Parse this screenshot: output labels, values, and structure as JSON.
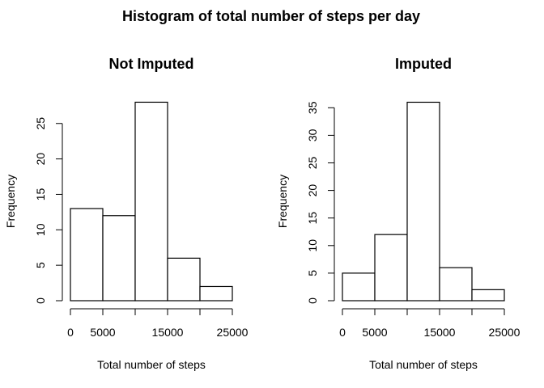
{
  "figure": {
    "title": "Histogram of total number of steps per day"
  },
  "chart_data": [
    {
      "type": "bar",
      "title": "Not Imputed",
      "xlabel": "Total number of steps",
      "ylabel": "Frequency",
      "bins": [
        {
          "from": 0,
          "to": 5000,
          "count": 13
        },
        {
          "from": 5000,
          "to": 10000,
          "count": 12
        },
        {
          "from": 10000,
          "to": 15000,
          "count": 28
        },
        {
          "from": 15000,
          "to": 20000,
          "count": 6
        },
        {
          "from": 20000,
          "to": 25000,
          "count": 2
        }
      ],
      "xlim": [
        0,
        25000
      ],
      "x_ticks": [
        0,
        5000,
        10000,
        15000,
        20000,
        25000
      ],
      "x_tick_labels": [
        "0",
        "5000",
        "",
        "15000",
        "",
        "25000"
      ],
      "ylim": [
        0,
        28
      ],
      "y_ticks": [
        0,
        5,
        10,
        15,
        20,
        25
      ],
      "y_tick_labels": [
        "0",
        "5",
        "10",
        "15",
        "20",
        "25"
      ],
      "grid": false,
      "legend": "none"
    },
    {
      "type": "bar",
      "title": "Imputed",
      "xlabel": "Total number of steps",
      "ylabel": "Frequency",
      "bins": [
        {
          "from": 0,
          "to": 5000,
          "count": 5
        },
        {
          "from": 5000,
          "to": 10000,
          "count": 12
        },
        {
          "from": 10000,
          "to": 15000,
          "count": 36
        },
        {
          "from": 15000,
          "to": 20000,
          "count": 6
        },
        {
          "from": 20000,
          "to": 25000,
          "count": 2
        }
      ],
      "xlim": [
        0,
        25000
      ],
      "x_ticks": [
        0,
        5000,
        10000,
        15000,
        20000,
        25000
      ],
      "x_tick_labels": [
        "0",
        "5000",
        "",
        "15000",
        "",
        "25000"
      ],
      "ylim": [
        0,
        36
      ],
      "y_ticks": [
        0,
        5,
        10,
        15,
        20,
        25,
        30,
        35
      ],
      "y_tick_labels": [
        "0",
        "5",
        "10",
        "15",
        "20",
        "25",
        "30",
        "35"
      ],
      "grid": false,
      "legend": "none"
    }
  ],
  "style": {
    "background": "#ffffff",
    "bar_fill": "#ffffff",
    "stroke": "#000000",
    "text": "#000000"
  }
}
